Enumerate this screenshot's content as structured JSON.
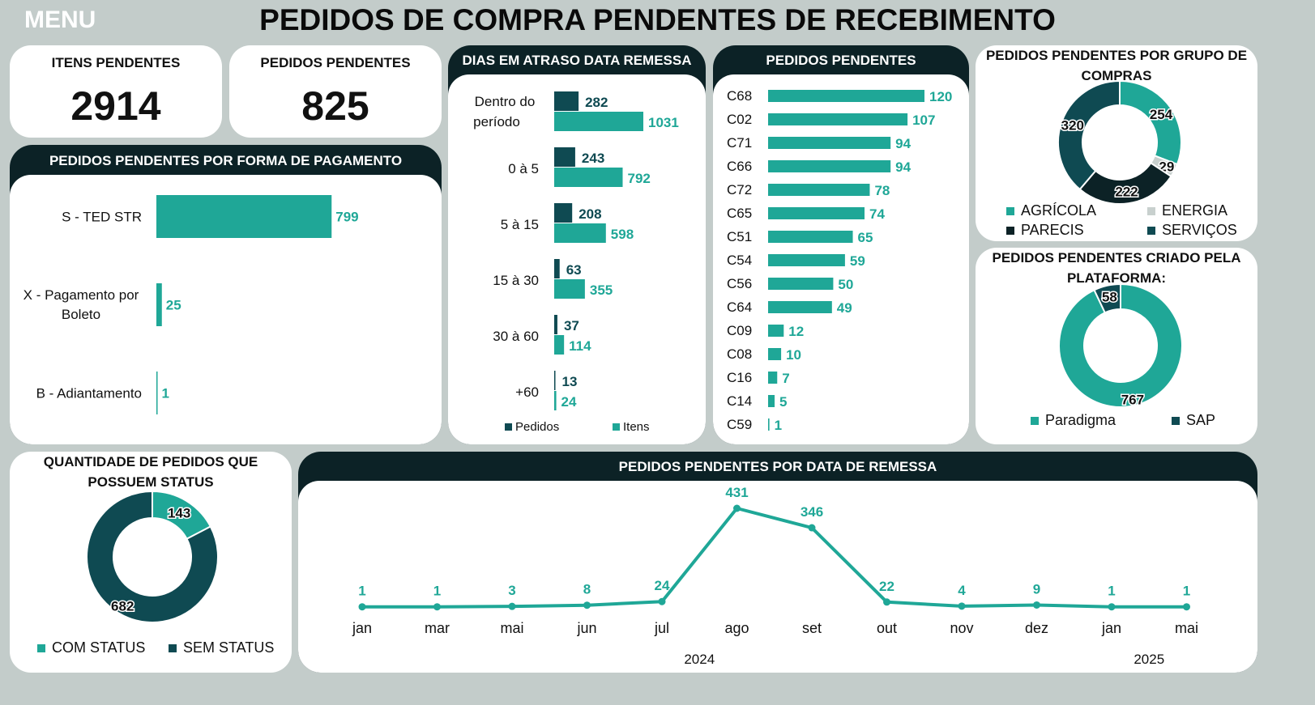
{
  "menu_label": "MENU",
  "title": "PEDIDOS DE COMPRA PENDENTES DE RECEBIMENTO",
  "colors": {
    "teal": "#1fa797",
    "dark": "#0f4a52",
    "black": "#0c2226",
    "grey": "#c8d0ce"
  },
  "kpis": {
    "itens_label": "ITENS PENDENTES",
    "itens_value": "2914",
    "pedidos_label": "PEDIDOS PENDENTES",
    "pedidos_value": "825"
  },
  "cards": {
    "forma_pagamento": "PEDIDOS PENDENTES POR FORMA DE PAGAMENTO",
    "dias_atraso": "DIAS EM ATRASO DATA REMESSA",
    "pedidos_pendentes": "PEDIDOS PENDENTES",
    "grupo_compras": "PEDIDOS PENDENTES POR GRUPO DE COMPRAS",
    "plataforma": "PEDIDOS PENDENTES CRIADO PELA PLATAFORMA:",
    "status": "QUANTIDADE DE PEDIDOS QUE POSSUEM STATUS",
    "data_remessa": "PEDIDOS PENDENTES POR DATA DE REMESSA"
  },
  "chart_data": [
    {
      "id": "forma_pagamento",
      "type": "bar",
      "orientation": "horizontal",
      "categories": [
        "S - TED STR",
        "X - Pagamento por Boleto",
        "B - Adiantamento"
      ],
      "values": [
        799,
        25,
        1
      ]
    },
    {
      "id": "dias_atraso",
      "type": "bar",
      "orientation": "horizontal",
      "categories": [
        "Dentro do período",
        "0 à 5",
        "5 à 15",
        "15 à 30",
        "30 à 60",
        "+60"
      ],
      "series": [
        {
          "name": "Pedidos",
          "values": [
            282,
            243,
            208,
            63,
            37,
            13
          ]
        },
        {
          "name": "Itens",
          "values": [
            1031,
            792,
            598,
            355,
            114,
            24
          ]
        }
      ],
      "legend": "bottom"
    },
    {
      "id": "pedidos_pendentes",
      "type": "bar",
      "orientation": "horizontal",
      "categories": [
        "C68",
        "C02",
        "C71",
        "C66",
        "C72",
        "C65",
        "C51",
        "C54",
        "C56",
        "C64",
        "C09",
        "C08",
        "C16",
        "C14",
        "C59"
      ],
      "values": [
        120,
        107,
        94,
        94,
        78,
        74,
        65,
        59,
        50,
        49,
        12,
        10,
        7,
        5,
        1
      ]
    },
    {
      "id": "grupo_compras",
      "type": "pie",
      "donut": true,
      "categories": [
        "AGRÍCOLA",
        "ENERGIA",
        "PARECIS",
        "SERVIÇOS"
      ],
      "values": [
        254,
        29,
        222,
        320
      ],
      "legend": "bottom"
    },
    {
      "id": "plataforma",
      "type": "pie",
      "donut": true,
      "categories": [
        "Paradigma",
        "SAP"
      ],
      "values": [
        767,
        58
      ],
      "legend": "bottom"
    },
    {
      "id": "status",
      "type": "pie",
      "donut": true,
      "categories": [
        "COM STATUS",
        "SEM STATUS"
      ],
      "values": [
        143,
        682
      ],
      "legend": "bottom"
    },
    {
      "id": "data_remessa",
      "type": "line",
      "x": [
        "jan",
        "mar",
        "mai",
        "jun",
        "jul",
        "ago",
        "set",
        "out",
        "nov",
        "dez",
        "jan",
        "mai"
      ],
      "year_groups": [
        {
          "label": "2024",
          "span": 10
        },
        {
          "label": "2025",
          "span": 2
        }
      ],
      "values": [
        1,
        1,
        3,
        8,
        24,
        431,
        346,
        22,
        4,
        9,
        1,
        1
      ]
    }
  ]
}
